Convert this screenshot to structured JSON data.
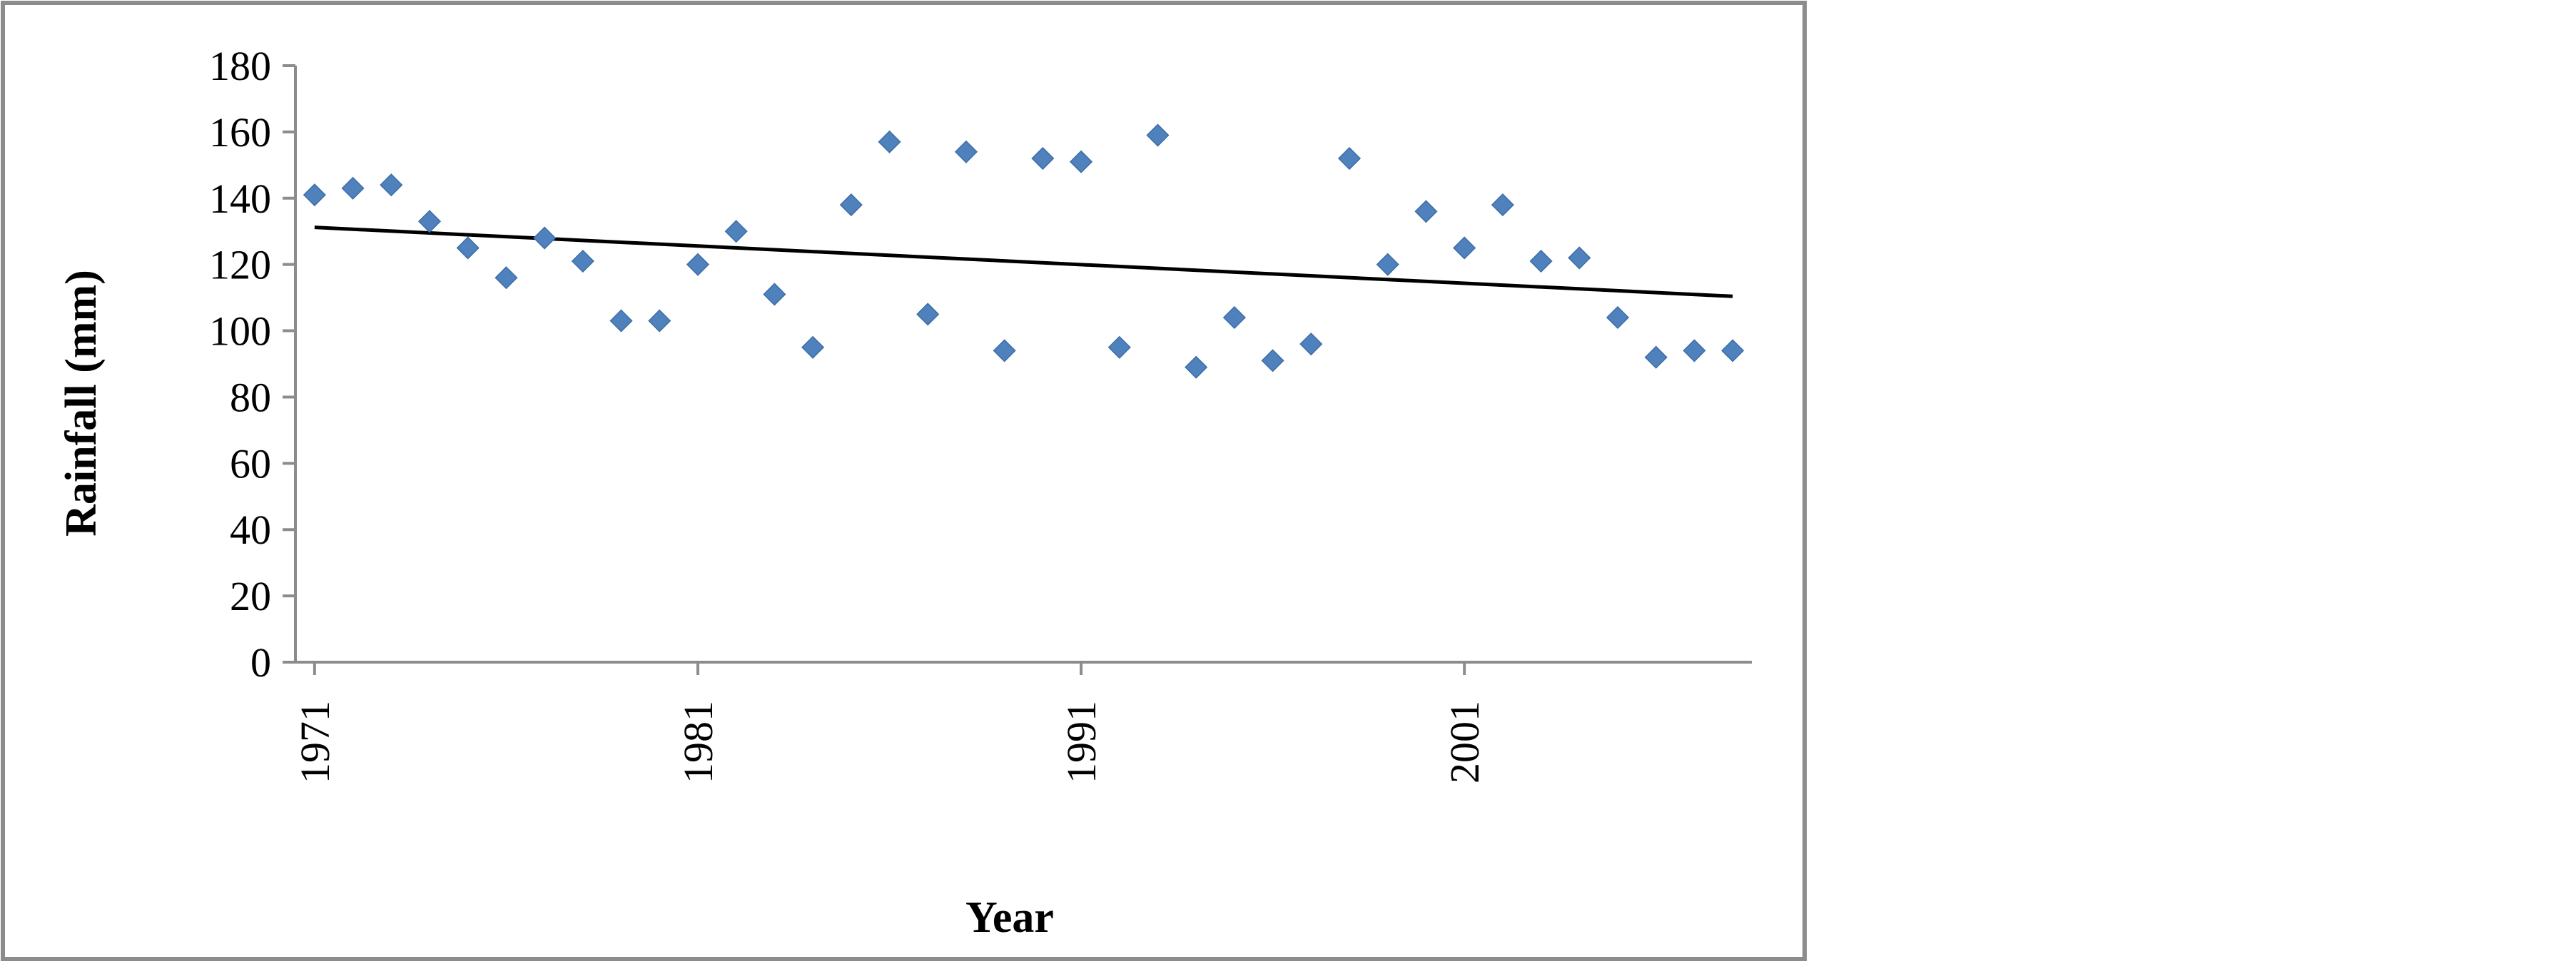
{
  "chart_data": {
    "type": "scatter",
    "title": "",
    "xlabel": "Year",
    "ylabel": "Rainfall (mm)",
    "xlim": [
      1970.5,
      2008.5
    ],
    "ylim": [
      0,
      180
    ],
    "x_ticks": [
      1971,
      1981,
      1991,
      2001
    ],
    "x_tick_labels": [
      "1971",
      "1981",
      "1991",
      "2001"
    ],
    "y_ticks": [
      0,
      20,
      40,
      60,
      80,
      100,
      120,
      140,
      160,
      180
    ],
    "y_tick_labels": [
      "0",
      "20",
      "40",
      "60",
      "80",
      "100",
      "120",
      "140",
      "160",
      "180"
    ],
    "grid": false,
    "legend": "none",
    "marker": "diamond",
    "marker_color": "#4f81bd",
    "trendline_color": "#000000",
    "series": [
      {
        "x": [
          1971,
          1972,
          1973,
          1974,
          1975,
          1976,
          1977,
          1978,
          1979,
          1980,
          1981,
          1982,
          1983,
          1984,
          1985,
          1986,
          1987,
          1988,
          1989,
          1990,
          1991,
          1992,
          1993,
          1994,
          1995,
          1996,
          1997,
          1998,
          1999,
          2000,
          2001,
          2002,
          2003,
          2004,
          2005,
          2006,
          2007,
          2008
        ],
        "values": [
          141,
          143,
          144,
          133,
          125,
          116,
          128,
          121,
          103,
          103,
          120,
          130,
          111,
          95,
          138,
          157,
          105,
          154,
          94,
          152,
          151,
          95,
          159,
          89,
          104,
          91,
          96,
          152,
          120,
          136,
          125,
          138,
          121,
          122,
          104,
          92,
          94,
          94
        ]
      }
    ],
    "trendline": {
      "x": [
        1971,
        2008
      ],
      "values": [
        131.2,
        110.4
      ]
    }
  }
}
